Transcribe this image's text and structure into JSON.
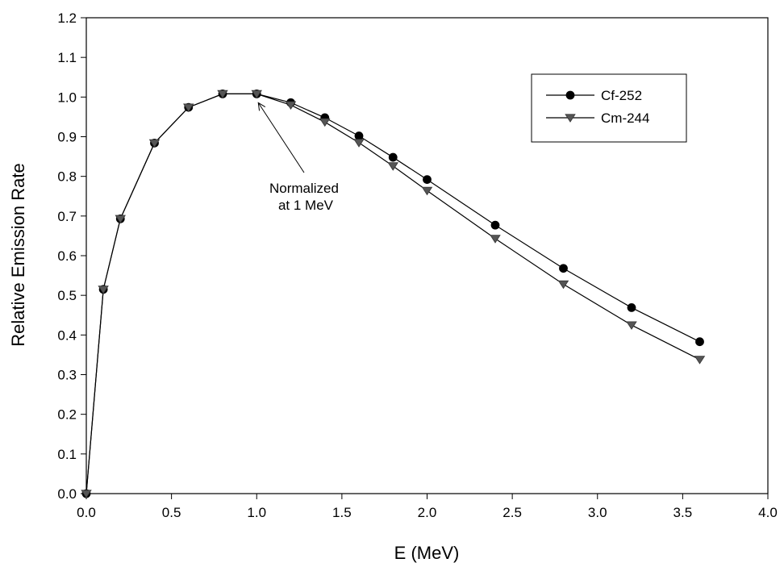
{
  "chart_data": {
    "type": "line",
    "xlabel": "E (MeV)",
    "ylabel": "Relative Emission Rate",
    "xlim": [
      0,
      4.0
    ],
    "ylim": [
      0,
      1.2
    ],
    "xticks": [
      "0.0",
      "0.5",
      "1.0",
      "1.5",
      "2.0",
      "2.5",
      "3.0",
      "3.5",
      "4.0"
    ],
    "yticks": [
      "0.0",
      "0.1",
      "0.2",
      "0.3",
      "0.4",
      "0.5",
      "0.6",
      "0.7",
      "0.8",
      "0.9",
      "1.0",
      "1.1",
      "1.2"
    ],
    "grid": false,
    "legend_position": "top-right",
    "series": [
      {
        "name": "Cf-252",
        "marker": "circle",
        "color": "#000000",
        "x": [
          0.0,
          0.1,
          0.2,
          0.4,
          0.6,
          0.8,
          1.0,
          1.2,
          1.4,
          1.6,
          1.8,
          2.0,
          2.4,
          2.8,
          3.2,
          3.6
        ],
        "y": [
          0.0,
          0.515,
          0.693,
          0.884,
          0.974,
          1.008,
          1.008,
          0.986,
          0.948,
          0.902,
          0.848,
          0.792,
          0.677,
          0.568,
          0.469,
          0.383
        ]
      },
      {
        "name": "Cm-244",
        "marker": "triangle-down",
        "color": "#555555",
        "x": [
          0.0,
          0.1,
          0.2,
          0.4,
          0.6,
          0.8,
          1.0,
          1.2,
          1.4,
          1.6,
          1.8,
          2.0,
          2.4,
          2.8,
          3.2,
          3.6
        ],
        "y": [
          0.0,
          0.515,
          0.693,
          0.884,
          0.974,
          1.008,
          1.008,
          0.98,
          0.937,
          0.885,
          0.826,
          0.764,
          0.643,
          0.528,
          0.425,
          0.338
        ]
      }
    ],
    "annotations": [
      {
        "line1": "Normalized",
        "line2": "at 1 MeV",
        "points_to": {
          "x": 1.0,
          "y": 1.008
        }
      }
    ]
  }
}
